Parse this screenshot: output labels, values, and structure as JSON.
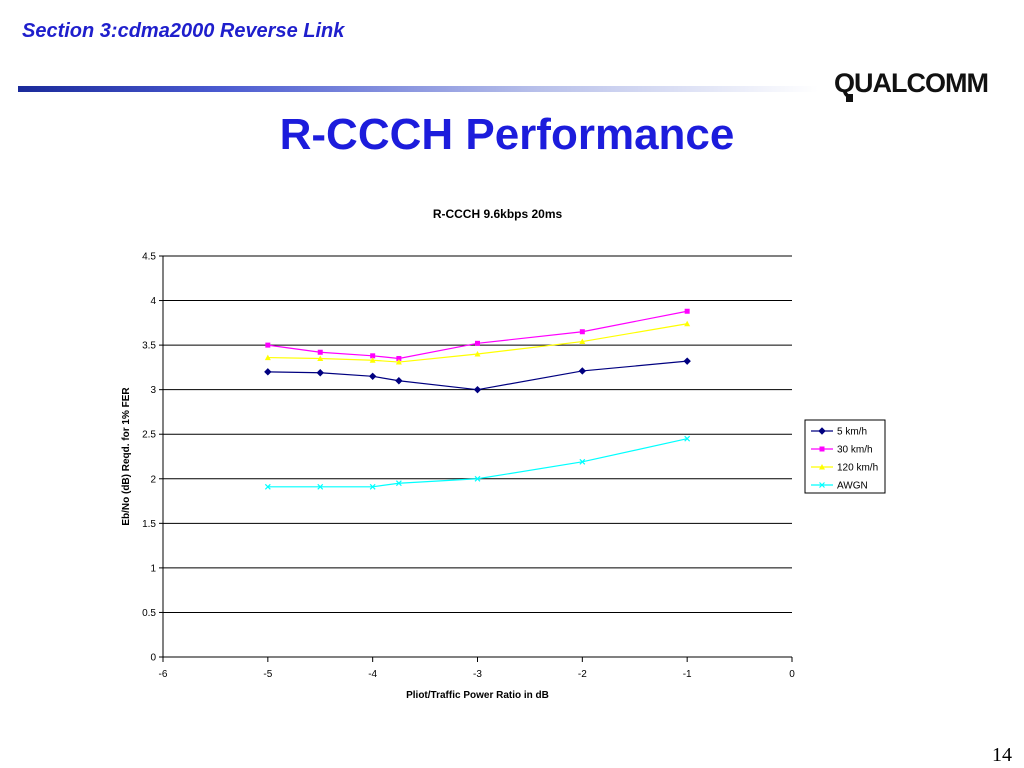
{
  "slide": {
    "section": "Section 3:cdma2000 Reverse Link",
    "title": "R-CCCH Performance",
    "page_number": "14",
    "logo_text": "QUALCOMM"
  },
  "chart_data": {
    "type": "line",
    "title": "R-CCCH 9.6kbps 20ms",
    "xlabel": "Pliot/Traffic Power Ratio in dB",
    "ylabel": "Eb/No (dB) Reqd. for 1% FER",
    "xlim": [
      -6,
      0
    ],
    "ylim": [
      0,
      4.5
    ],
    "x_ticks": [
      -6,
      -5,
      -4,
      -3,
      -2,
      -1,
      0
    ],
    "y_ticks": [
      0,
      0.5,
      1,
      1.5,
      2,
      2.5,
      3,
      3.5,
      4,
      4.5
    ],
    "grid": "horizontal",
    "legend": "right",
    "x": [
      -5,
      -4.5,
      -4,
      -3.75,
      -3,
      -2,
      -1
    ],
    "series": [
      {
        "name": "5 km/h",
        "color": "#000080",
        "marker": "diamond",
        "values": [
          3.2,
          3.19,
          3.15,
          3.1,
          3.0,
          3.21,
          3.32
        ]
      },
      {
        "name": "30 km/h",
        "color": "#ff00ff",
        "marker": "square",
        "values": [
          3.5,
          3.42,
          3.38,
          3.35,
          3.52,
          3.65,
          3.88
        ]
      },
      {
        "name": "120 km/h",
        "color": "#ffff00",
        "marker": "triangle",
        "values": [
          3.36,
          3.35,
          3.33,
          3.31,
          3.4,
          3.54,
          3.74
        ]
      },
      {
        "name": "AWGN",
        "color": "#00ffff",
        "marker": "x",
        "values": [
          1.91,
          1.91,
          1.91,
          1.95,
          2.0,
          2.19,
          2.45
        ]
      }
    ]
  }
}
